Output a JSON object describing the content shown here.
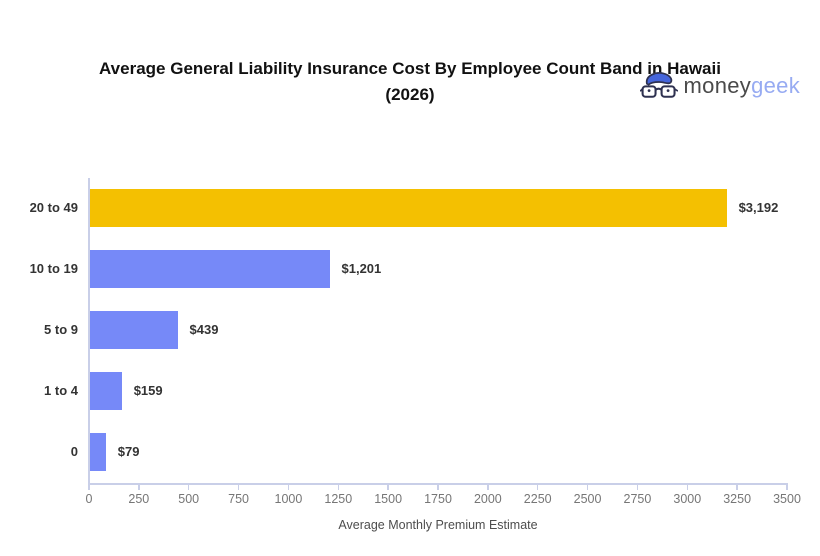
{
  "logo": {
    "money": "money",
    "geek": "geek",
    "money_color": "#4a4a4a",
    "geek_color": "#97abf2",
    "icon_hair_color": "#4565db",
    "icon_outline_color": "#2e3150"
  },
  "chart_data": {
    "type": "bar",
    "orientation": "horizontal",
    "title": "Average General Liability Insurance Cost By Employee Count Band in Hawaii (2026)",
    "categories": [
      "20 to 49",
      "10 to 19",
      "5 to 9",
      "1 to 4",
      "0"
    ],
    "values": [
      3192,
      1201,
      439,
      159,
      79
    ],
    "value_labels": [
      "$3,192",
      "$1,201",
      "$439",
      "$159",
      "$79"
    ],
    "bar_colors": [
      "#f4c001",
      "#7689f8",
      "#7689f8",
      "#7689f8",
      "#7689f8"
    ],
    "xlabel": "Average Monthly Premium Estimate",
    "ylabel": "",
    "xlim": [
      0,
      3500
    ],
    "x_ticks": [
      0,
      250,
      500,
      750,
      1000,
      1250,
      1500,
      1750,
      2000,
      2250,
      2500,
      2750,
      3000,
      3250,
      3500
    ],
    "grid": false,
    "legend": false,
    "axis_color": "#c9cfe8",
    "tick_label_color": "#767676",
    "category_label_color": "#333333",
    "value_label_color": "#333333"
  }
}
